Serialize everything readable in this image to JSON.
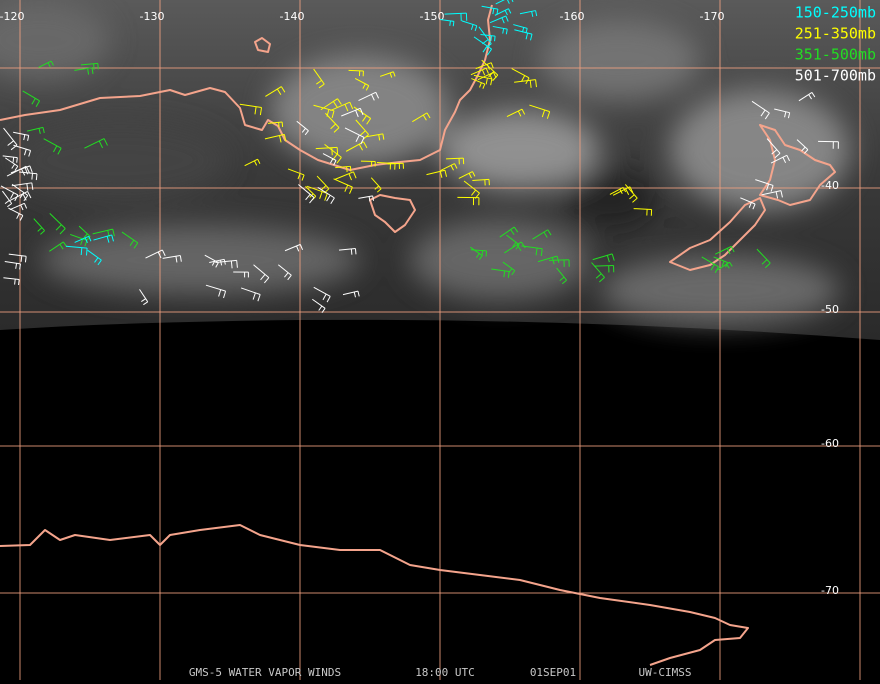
{
  "map": {
    "longitude_labels": [
      "-120",
      "-130",
      "-140",
      "-150",
      "-160",
      "-170"
    ],
    "latitude_labels": [
      "-40",
      "-50",
      "-60",
      "-70"
    ],
    "legend": [
      {
        "label": "150-250mb",
        "color": "#00ffff"
      },
      {
        "label": "251-350mb",
        "color": "#ffff00"
      },
      {
        "label": "351-500mb",
        "color": "#22dd22"
      },
      {
        "label": "501-700mb",
        "color": "#ffffff"
      }
    ],
    "footer": [
      "GMS-5 WATER VAPOR WINDS",
      "18:00 UTC",
      "01SEP01",
      "UW-CIMSS"
    ]
  }
}
